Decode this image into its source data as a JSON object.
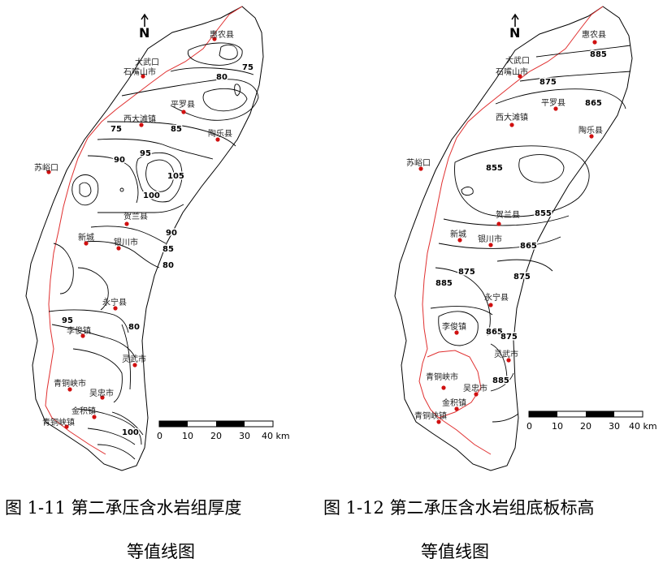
{
  "north_label": "N",
  "map_left": {
    "caption_line1": "图 1-11   第二承压含水岩组厚度",
    "caption_line2": "等值线图",
    "towns": [
      "惠农县",
      "大武口",
      "石嘴山市",
      "平罗县",
      "西大滩镇",
      "陶乐县",
      "苏峪口",
      "贺兰县",
      "新城",
      "银川市",
      "永宁县",
      "李俊镇",
      "灵武市",
      "青铜峡市",
      "吴忠市",
      "金积镇",
      "青铜峡镇"
    ],
    "contour_labels": [
      "75",
      "80",
      "85",
      "75",
      "90",
      "95",
      "105",
      "100",
      "90",
      "85",
      "80",
      "95",
      "80",
      "100"
    ]
  },
  "map_right": {
    "caption_line1": "图 1-12   第二承压含水岩组底板标高",
    "caption_line2": "等值线图",
    "towns": [
      "惠农县",
      "大武口",
      "石嘴山市",
      "平罗县",
      "西大滩镇",
      "陶乐县",
      "苏峪口",
      "贺兰县",
      "新城",
      "银川市",
      "永宁县",
      "李俊镇",
      "灵武市",
      "青铜峡市",
      "吴忠市",
      "金积镇",
      "青铜峡镇"
    ],
    "contour_labels": [
      "885",
      "875",
      "865",
      "855",
      "855",
      "865",
      "875",
      "885",
      "875",
      "865",
      "875",
      "885"
    ]
  },
  "scale_bar": {
    "ticks": [
      "0",
      "10",
      "20",
      "30",
      "40 km"
    ]
  },
  "colors": {
    "boundary": "#e03030",
    "contour": "#000000",
    "town_dot": "#d01010"
  }
}
